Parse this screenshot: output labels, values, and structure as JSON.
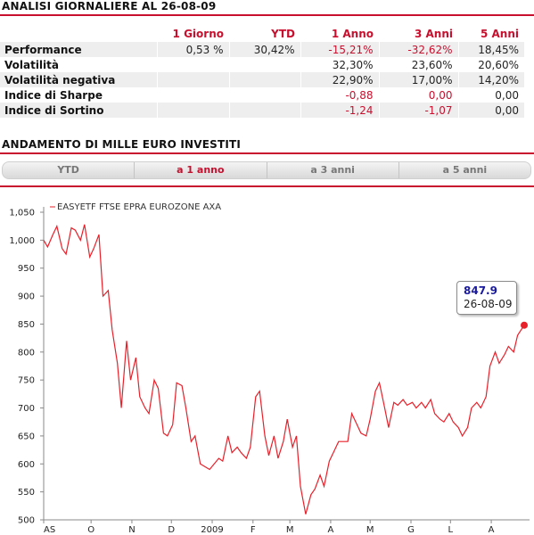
{
  "analysis": {
    "title": "ANALISI GIORNALIERE AL 26-08-09",
    "columns": [
      "1 Giorno",
      "YTD",
      "1 Anno",
      "3 Anni",
      "5 Anni"
    ],
    "rows": [
      {
        "label": "Performance",
        "values": [
          "0,53 %",
          "30,42%",
          "-15,21%",
          "-32,62%",
          "18,45%"
        ]
      },
      {
        "label": "Volatilità",
        "values": [
          "",
          "",
          "32,30%",
          "23,60%",
          "20,60%"
        ]
      },
      {
        "label": "Volatilità negativa",
        "values": [
          "",
          "",
          "22,90%",
          "17,00%",
          "14,20%"
        ]
      },
      {
        "label": "Indice di Sharpe",
        "values": [
          "",
          "",
          "-0,88",
          "0,00",
          "0,00"
        ]
      },
      {
        "label": "Indice di Sortino",
        "values": [
          "",
          "",
          "-1,24",
          "-1,07",
          "0,00"
        ]
      }
    ]
  },
  "investment": {
    "title": "ANDAMENTO DI MILLE EURO INVESTITI",
    "tabs": [
      {
        "label": "YTD",
        "active": false
      },
      {
        "label": "a 1 anno",
        "active": true
      },
      {
        "label": "a 3 anni",
        "active": false
      },
      {
        "label": "a 5 anni",
        "active": false
      }
    ]
  },
  "tooltip": {
    "value": "847.9",
    "date": "26-08-09"
  },
  "colors": {
    "accent": "#c8102e",
    "line": "#e8202a",
    "tooltip_value": "#1a1aa0",
    "row_alt": "#eeeeee"
  },
  "chart_data": {
    "type": "line",
    "series": [
      {
        "name": "EASYETF FTSE EPRA EUROZONE AXA",
        "x": [
          "2008-08-26",
          "2008-08-29",
          "2008-09-02",
          "2008-09-05",
          "2008-09-09",
          "2008-09-12",
          "2008-09-16",
          "2008-09-19",
          "2008-09-23",
          "2008-09-26",
          "2008-09-30",
          "2008-10-03",
          "2008-10-07",
          "2008-10-10",
          "2008-10-14",
          "2008-10-17",
          "2008-10-21",
          "2008-10-24",
          "2008-10-28",
          "2008-10-31",
          "2008-11-04",
          "2008-11-07",
          "2008-11-11",
          "2008-11-14",
          "2008-11-18",
          "2008-11-21",
          "2008-11-25",
          "2008-11-28",
          "2008-12-02",
          "2008-12-05",
          "2008-12-09",
          "2008-12-12",
          "2008-12-16",
          "2008-12-19",
          "2008-12-23",
          "2008-12-30",
          "2009-01-06",
          "2009-01-09",
          "2009-01-13",
          "2009-01-16",
          "2009-01-20",
          "2009-01-23",
          "2009-01-27",
          "2009-01-30",
          "2009-02-03",
          "2009-02-06",
          "2009-02-10",
          "2009-02-13",
          "2009-02-17",
          "2009-02-20",
          "2009-02-24",
          "2009-02-27",
          "2009-03-03",
          "2009-03-06",
          "2009-03-09",
          "2009-03-13",
          "2009-03-17",
          "2009-03-20",
          "2009-03-24",
          "2009-03-27",
          "2009-03-31",
          "2009-04-03",
          "2009-04-07",
          "2009-04-14",
          "2009-04-17",
          "2009-04-21",
          "2009-04-24",
          "2009-04-28",
          "2009-05-01",
          "2009-05-05",
          "2009-05-08",
          "2009-05-12",
          "2009-05-15",
          "2009-05-19",
          "2009-05-22",
          "2009-05-26",
          "2009-05-29",
          "2009-06-02",
          "2009-06-05",
          "2009-06-09",
          "2009-06-12",
          "2009-06-16",
          "2009-06-19",
          "2009-06-23",
          "2009-06-26",
          "2009-06-30",
          "2009-07-03",
          "2009-07-07",
          "2009-07-10",
          "2009-07-14",
          "2009-07-17",
          "2009-07-21",
          "2009-07-24",
          "2009-07-28",
          "2009-07-31",
          "2009-08-04",
          "2009-08-07",
          "2009-08-11",
          "2009-08-14",
          "2009-08-18",
          "2009-08-21",
          "2009-08-26"
        ],
        "values": [
          1000,
          988,
          1010,
          1025,
          985,
          975,
          1022,
          1018,
          1000,
          1028,
          970,
          985,
          1010,
          900,
          910,
          840,
          780,
          700,
          820,
          750,
          790,
          720,
          700,
          690,
          750,
          735,
          655,
          650,
          670,
          745,
          740,
          700,
          640,
          650,
          600,
          590,
          610,
          605,
          650,
          620,
          630,
          620,
          610,
          630,
          720,
          730,
          650,
          615,
          650,
          610,
          640,
          680,
          630,
          650,
          560,
          510,
          545,
          555,
          580,
          560,
          605,
          620,
          640,
          640,
          690,
          670,
          655,
          650,
          680,
          730,
          745,
          700,
          665,
          710,
          705,
          715,
          705,
          710,
          700,
          710,
          700,
          715,
          690,
          680,
          675,
          690,
          675,
          665,
          650,
          665,
          700,
          710,
          700,
          720,
          775,
          800,
          780,
          795,
          810,
          800,
          830,
          848
        ]
      }
    ],
    "title": "",
    "xlabel": "",
    "ylabel": "",
    "ylim": [
      500,
      1050
    ],
    "yticks": [
      500,
      550,
      600,
      650,
      700,
      750,
      800,
      850,
      900,
      950,
      1000,
      1050
    ],
    "ytick_labels": [
      "500",
      "550",
      "600",
      "650",
      "700",
      "750",
      "800",
      "850",
      "900",
      "950",
      "1,000",
      "1,050"
    ],
    "xtick_labels": [
      {
        "label": "AS",
        "date": "2008-08-26"
      },
      {
        "label": "O",
        "date": "2008-10-01"
      },
      {
        "label": "N",
        "date": "2008-11-01"
      },
      {
        "label": "D",
        "date": "2008-12-01"
      },
      {
        "label": "2009",
        "date": "2009-01-01"
      },
      {
        "label": "F",
        "date": "2009-02-01"
      },
      {
        "label": "M",
        "date": "2009-03-01"
      },
      {
        "label": "A",
        "date": "2009-04-01"
      },
      {
        "label": "M",
        "date": "2009-05-01"
      },
      {
        "label": "G",
        "date": "2009-06-01"
      },
      {
        "label": "L",
        "date": "2009-07-01"
      },
      {
        "label": "A",
        "date": "2009-08-01"
      }
    ],
    "grid": false,
    "legend": "top-left"
  }
}
